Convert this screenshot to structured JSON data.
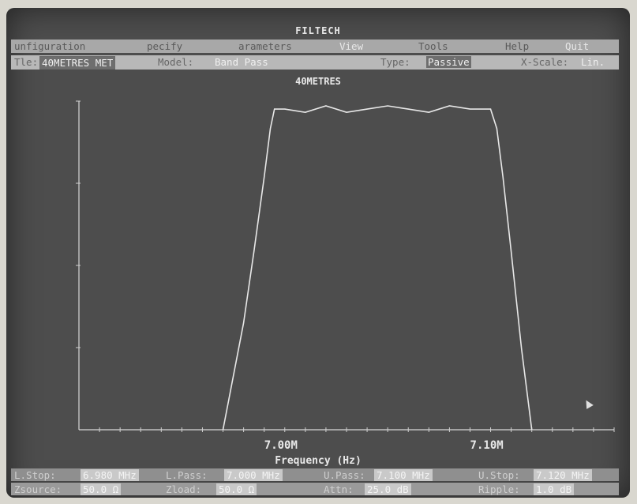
{
  "app": {
    "title": "FILTECH"
  },
  "menu": {
    "configuration": "unfiguration",
    "specify": "pecify",
    "parameters": "arameters",
    "view": "View",
    "tools": "Tools",
    "help": "Help",
    "quit": "Quit"
  },
  "status": {
    "title_label": "Tle:",
    "title_value": "40METRES MET",
    "model_label": "Model:",
    "model_value": "Band Pass",
    "type_label": "Type:",
    "type_value": "Passive",
    "xscale_label": "X-Scale:",
    "xscale_value": "Lin."
  },
  "chart_data": {
    "type": "line",
    "title": "40METRES",
    "xlabel": "Frequency (Hz)",
    "x_tick_labels": [
      "7.00M",
      "7.10M"
    ],
    "x": [
      6.97,
      6.98,
      6.985,
      6.99,
      6.993,
      6.995,
      7.0,
      7.01,
      7.02,
      7.03,
      7.04,
      7.05,
      7.06,
      7.07,
      7.08,
      7.09,
      7.1,
      7.103,
      7.106,
      7.11,
      7.115,
      7.12
    ],
    "y": [
      0.0,
      0.33,
      0.55,
      0.78,
      0.93,
      0.99,
      0.99,
      0.98,
      1.0,
      0.98,
      0.99,
      1.0,
      0.99,
      0.98,
      1.0,
      0.99,
      0.99,
      0.93,
      0.78,
      0.55,
      0.25,
      0.0
    ],
    "xlim": [
      6.9,
      7.16
    ],
    "ylim": [
      0,
      1
    ],
    "color": "#e8e8e8"
  },
  "bottom": {
    "lstop_label": "L.Stop:",
    "lstop_value": "6.980 MHz",
    "lpass_label": "L.Pass:",
    "lpass_value": "7.000 MHz",
    "upass_label": "U.Pass:",
    "upass_value": "7.100 MHz",
    "ustop_label": "U.Stop:",
    "ustop_value": "7.120 MHz",
    "zsource_label": "Zsource:",
    "zsource_value": "50.0 Ω",
    "zload_label": "Zload:",
    "zload_value": "50.0 Ω",
    "attn_label": "Attn:",
    "attn_value": "25.0 dB",
    "ripple_label": "Ripple:",
    "ripple_value": "1.0 dB"
  },
  "colors": {
    "screen": "#4d4d4d",
    "menubar": "#a8a8a8",
    "trace": "#e8e8e8"
  }
}
